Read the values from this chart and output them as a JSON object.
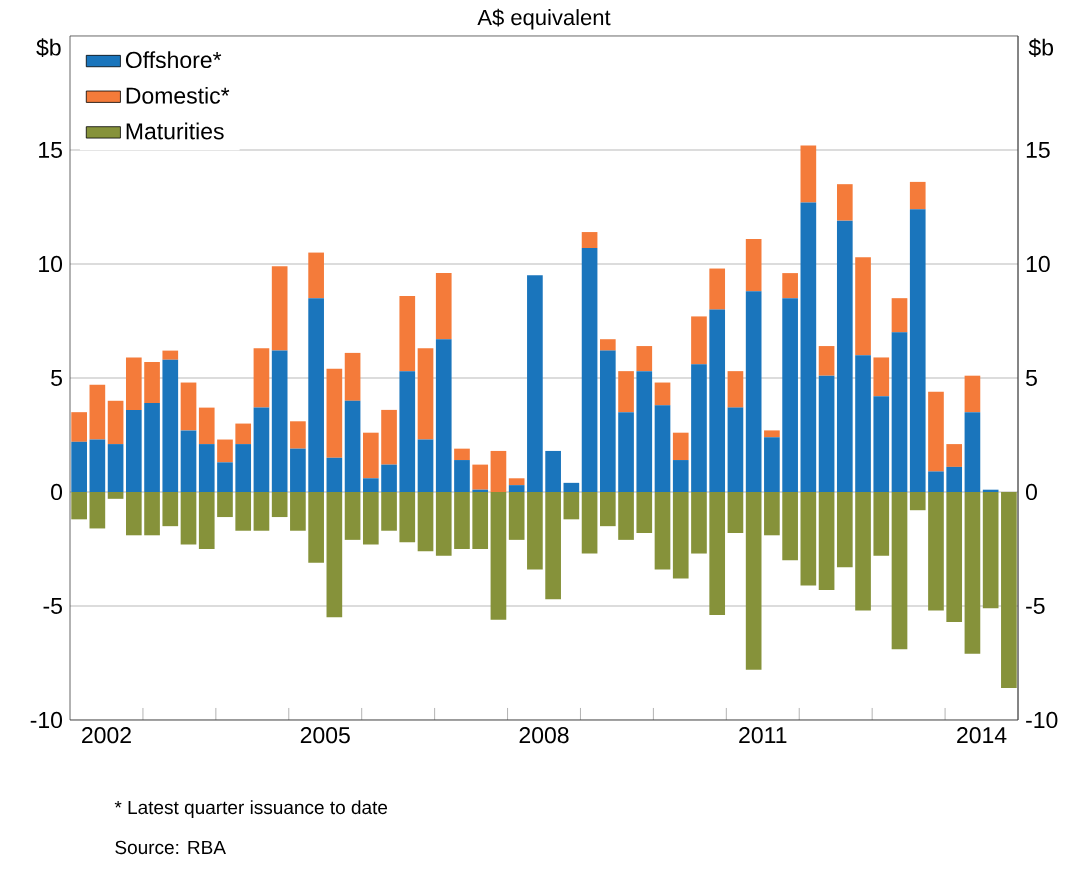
{
  "chart_data": {
    "type": "bar",
    "title": "A$ equivalent",
    "ylabel": "$b",
    "y2label": "$b",
    "stacked": true,
    "x": [
      2002.125,
      2002.375,
      2002.625,
      2002.875,
      2003.125,
      2003.375,
      2003.625,
      2003.875,
      2004.125,
      2004.375,
      2004.625,
      2004.875,
      2005.125,
      2005.375,
      2005.625,
      2005.875,
      2006.125,
      2006.375,
      2006.625,
      2006.875,
      2007.125,
      2007.375,
      2007.625,
      2007.875,
      2008.125,
      2008.375,
      2008.625,
      2008.875,
      2009.125,
      2009.375,
      2009.625,
      2009.875,
      2010.125,
      2010.375,
      2010.625,
      2010.875,
      2011.125,
      2011.375,
      2011.625,
      2011.875,
      2012.125,
      2012.375,
      2012.625,
      2012.875,
      2013.125,
      2013.375,
      2013.625,
      2013.875,
      2014.125,
      2014.375,
      2014.625,
      2014.875
    ],
    "series": [
      {
        "name": "Offshore*",
        "color": "#1a75bc",
        "values": [
          2.2,
          2.3,
          2.1,
          3.6,
          3.9,
          5.8,
          2.7,
          2.1,
          1.3,
          2.1,
          3.7,
          6.2,
          1.9,
          8.5,
          1.5,
          4.0,
          0.6,
          1.2,
          5.3,
          2.3,
          6.7,
          1.4,
          0.1,
          0,
          0.3,
          9.5,
          1.8,
          0.4,
          10.7,
          6.2,
          3.5,
          5.3,
          3.8,
          1.4,
          5.6,
          8.0,
          3.7,
          8.8,
          2.4,
          8.5,
          12.7,
          5.1,
          11.9,
          6.0,
          4.2,
          7.0,
          12.4,
          0.9,
          1.1,
          3.5,
          0.1,
          null
        ]
      },
      {
        "name": "Domestic*",
        "color": "#f47b3a",
        "values": [
          1.3,
          2.4,
          1.9,
          2.3,
          1.8,
          0.4,
          2.1,
          1.6,
          1.0,
          0.9,
          2.6,
          3.7,
          1.2,
          2.0,
          3.9,
          2.1,
          2.0,
          2.4,
          3.3,
          4.0,
          2.9,
          0.5,
          1.1,
          1.8,
          0.3,
          0,
          0,
          0,
          0.7,
          0.5,
          1.8,
          1.1,
          1.0,
          1.2,
          2.1,
          1.8,
          1.6,
          2.3,
          0.3,
          1.1,
          2.5,
          1.3,
          1.6,
          4.3,
          1.7,
          1.5,
          1.2,
          3.5,
          1.0,
          1.6,
          0,
          null
        ]
      },
      {
        "name": "Maturities",
        "color": "#86923a",
        "values": [
          -1.2,
          -1.6,
          -0.3,
          -1.9,
          -1.9,
          -1.5,
          -2.3,
          -2.5,
          -1.1,
          -1.7,
          -1.7,
          -1.1,
          -1.7,
          -3.1,
          -5.5,
          -2.1,
          -2.3,
          -1.7,
          -2.2,
          -2.6,
          -2.8,
          -2.5,
          -2.5,
          -5.6,
          -2.1,
          -3.4,
          -4.7,
          -1.2,
          -2.7,
          -1.5,
          -2.1,
          -1.8,
          -3.4,
          -3.8,
          -2.7,
          -5.4,
          -1.8,
          -7.8,
          -1.9,
          -3.0,
          -4.1,
          -4.3,
          -3.3,
          -5.2,
          -2.8,
          -6.9,
          -0.8,
          -5.2,
          -5.7,
          -7.1,
          -5.1,
          -8.6
        ]
      }
    ],
    "xlim": [
      2002,
      2015
    ],
    "xticks": [
      {
        "value": 2002.5,
        "label": "2002"
      },
      {
        "value": 2005.5,
        "label": "2005"
      },
      {
        "value": 2008.5,
        "label": "2008"
      },
      {
        "value": 2011.5,
        "label": "2011"
      },
      {
        "value": 2014.5,
        "label": "2014"
      },
      {
        "value": 2003,
        "label": null
      },
      {
        "value": 2004,
        "label": null
      },
      {
        "value": 2005,
        "label": null
      },
      {
        "value": 2006,
        "label": null
      },
      {
        "value": 2007,
        "label": null
      },
      {
        "value": 2008,
        "label": null
      },
      {
        "value": 2009,
        "label": null
      },
      {
        "value": 2010,
        "label": null
      },
      {
        "value": 2011,
        "label": null
      },
      {
        "value": 2012,
        "label": null
      },
      {
        "value": 2013,
        "label": null
      },
      {
        "value": 2014,
        "label": null
      }
    ],
    "ylim": [
      -10,
      20
    ],
    "yticks": [
      -10,
      -5,
      0,
      5,
      10,
      15
    ],
    "y2lim": [
      -10,
      20
    ],
    "y2ticks": [
      -10,
      -5,
      0,
      5,
      10,
      15
    ],
    "grid": "y",
    "legend": "top left",
    "annotations": [
      "*      Latest quarter issuance to date",
      "Source:    RBA"
    ]
  }
}
